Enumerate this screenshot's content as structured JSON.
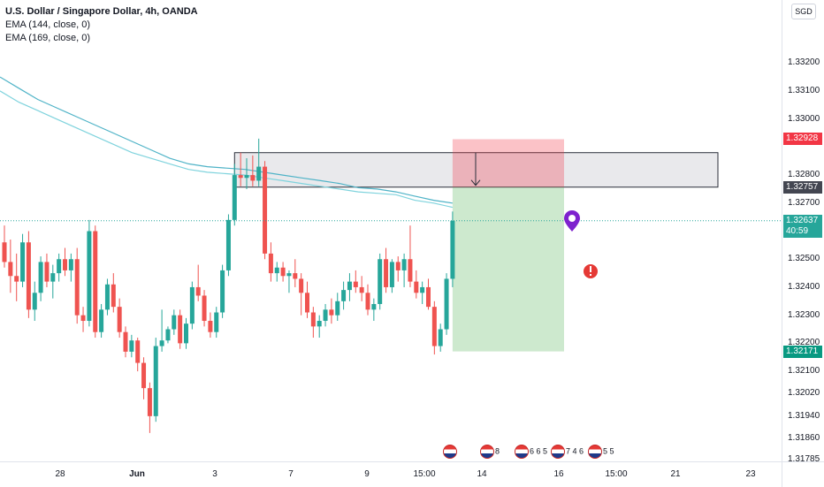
{
  "legend": {
    "title": "U.S. Dollar / Singapore Dollar, 4h, OANDA",
    "ema1": "EMA (144, close, 0)",
    "ema2": "EMA (169, close, 0)"
  },
  "price_axis": {
    "currency": "SGD",
    "ticks": [
      "1.33200",
      "1.33100",
      "1.33000",
      "1.32800",
      "1.32700",
      "1.32500",
      "1.32400",
      "1.32300",
      "1.32200",
      "1.32100",
      "1.32020",
      "1.31940",
      "1.31860",
      "1.31785"
    ],
    "tags": {
      "stop": {
        "value": "1.32928",
        "color": "#f23645"
      },
      "entry": {
        "value": "1.32757",
        "color": "#434651"
      },
      "current": {
        "value": "1.32637",
        "countdown": "40:59",
        "color": "#26a69a"
      },
      "target": {
        "value": "1.32171",
        "color": "#089981"
      }
    }
  },
  "time_axis": {
    "ticks": [
      "28",
      "Jun",
      "3",
      "7",
      "9",
      "15:00",
      "14",
      "16",
      "15:00",
      "21",
      "23"
    ]
  },
  "events": [
    {
      "count": "8"
    },
    {
      "count": "6 6 5"
    },
    {
      "count": "7 4 6"
    },
    {
      "count": "5 5"
    }
  ],
  "colors": {
    "up": "#26a69a",
    "down": "#ef5350",
    "ema1": "#7fd3dd",
    "ema2": "#4fb3c7"
  },
  "chart_data": {
    "type": "candlestick",
    "symbol": "USDSGD",
    "interval": "4h",
    "ylim": [
      1.31785,
      1.3333
    ],
    "current_price": 1.32637,
    "position": {
      "direction": "short",
      "entry": 1.32757,
      "stop": 1.32928,
      "target": 1.32171
    },
    "resistance_zone": [
      1.32757,
      1.3288
    ],
    "candles": [
      [
        1.3256,
        1.3262,
        1.3247,
        1.3249
      ],
      [
        1.3249,
        1.3257,
        1.3238,
        1.3244
      ],
      [
        1.3244,
        1.3252,
        1.3235,
        1.3242
      ],
      [
        1.3242,
        1.3259,
        1.324,
        1.3256
      ],
      [
        1.3256,
        1.326,
        1.3229,
        1.3232
      ],
      [
        1.3232,
        1.3242,
        1.3228,
        1.3238
      ],
      [
        1.3238,
        1.3251,
        1.3235,
        1.3249
      ],
      [
        1.3249,
        1.3252,
        1.324,
        1.3242
      ],
      [
        1.3242,
        1.3248,
        1.3236,
        1.3245
      ],
      [
        1.3245,
        1.3252,
        1.3242,
        1.325
      ],
      [
        1.325,
        1.3254,
        1.3244,
        1.3246
      ],
      [
        1.3246,
        1.3252,
        1.3242,
        1.325
      ],
      [
        1.325,
        1.3254,
        1.3227,
        1.323
      ],
      [
        1.323,
        1.3233,
        1.3224,
        1.3228
      ],
      [
        1.3228,
        1.3264,
        1.3226,
        1.326
      ],
      [
        1.326,
        1.3262,
        1.3222,
        1.3224
      ],
      [
        1.3224,
        1.3234,
        1.3222,
        1.3232
      ],
      [
        1.3232,
        1.3243,
        1.323,
        1.3241
      ],
      [
        1.3241,
        1.3245,
        1.3231,
        1.3233
      ],
      [
        1.3233,
        1.3236,
        1.3222,
        1.3224
      ],
      [
        1.3224,
        1.3226,
        1.3215,
        1.3217
      ],
      [
        1.3217,
        1.3223,
        1.3215,
        1.3221
      ],
      [
        1.3221,
        1.3222,
        1.321,
        1.3213
      ],
      [
        1.3213,
        1.3215,
        1.32,
        1.3204
      ],
      [
        1.3204,
        1.3206,
        1.3188,
        1.3194
      ],
      [
        1.3194,
        1.3222,
        1.3192,
        1.3219
      ],
      [
        1.3219,
        1.3232,
        1.3217,
        1.3221
      ],
      [
        1.3221,
        1.3226,
        1.322,
        1.3225
      ],
      [
        1.3225,
        1.3232,
        1.3223,
        1.323
      ],
      [
        1.323,
        1.3232,
        1.3218,
        1.322
      ],
      [
        1.322,
        1.3229,
        1.3218,
        1.3227
      ],
      [
        1.3227,
        1.3242,
        1.3225,
        1.324
      ],
      [
        1.324,
        1.3248,
        1.3235,
        1.3237
      ],
      [
        1.3237,
        1.3239,
        1.3226,
        1.3228
      ],
      [
        1.3228,
        1.3231,
        1.3222,
        1.3224
      ],
      [
        1.3224,
        1.3233,
        1.3222,
        1.3231
      ],
      [
        1.3231,
        1.3248,
        1.3229,
        1.3246
      ],
      [
        1.3246,
        1.3266,
        1.3244,
        1.3264
      ],
      [
        1.3264,
        1.3284,
        1.3262,
        1.328
      ],
      [
        1.328,
        1.3288,
        1.3276,
        1.3279
      ],
      [
        1.3279,
        1.3286,
        1.3275,
        1.328
      ],
      [
        1.328,
        1.3287,
        1.3276,
        1.3278
      ],
      [
        1.3278,
        1.3293,
        1.3276,
        1.3283
      ],
      [
        1.3283,
        1.3285,
        1.325,
        1.3252
      ],
      [
        1.3252,
        1.3256,
        1.3242,
        1.3245
      ],
      [
        1.3245,
        1.3249,
        1.3242,
        1.3247
      ],
      [
        1.3247,
        1.3249,
        1.3242,
        1.3244
      ],
      [
        1.3244,
        1.3246,
        1.3238,
        1.3245
      ],
      [
        1.3245,
        1.325,
        1.324,
        1.3243
      ],
      [
        1.3243,
        1.3245,
        1.323,
        1.3238
      ],
      [
        1.3238,
        1.3242,
        1.3229,
        1.3231
      ],
      [
        1.3231,
        1.3233,
        1.3222,
        1.3226
      ],
      [
        1.3226,
        1.323,
        1.3222,
        1.3228
      ],
      [
        1.3228,
        1.3234,
        1.3226,
        1.3232
      ],
      [
        1.3232,
        1.3236,
        1.3227,
        1.323
      ],
      [
        1.323,
        1.3238,
        1.3228,
        1.3235
      ],
      [
        1.3235,
        1.3242,
        1.3232,
        1.3239
      ],
      [
        1.3239,
        1.3245,
        1.3235,
        1.3242
      ],
      [
        1.3242,
        1.3246,
        1.3238,
        1.324
      ],
      [
        1.324,
        1.3244,
        1.3235,
        1.3238
      ],
      [
        1.3238,
        1.3241,
        1.323,
        1.3232
      ],
      [
        1.3232,
        1.3236,
        1.3228,
        1.3234
      ],
      [
        1.3234,
        1.3252,
        1.3232,
        1.325
      ],
      [
        1.325,
        1.3254,
        1.3238,
        1.324
      ],
      [
        1.324,
        1.325,
        1.3238,
        1.3249
      ],
      [
        1.3249,
        1.3251,
        1.3242,
        1.3246
      ],
      [
        1.3246,
        1.3252,
        1.324,
        1.325
      ],
      [
        1.325,
        1.3262,
        1.324,
        1.3242
      ],
      [
        1.3242,
        1.3246,
        1.3236,
        1.3238
      ],
      [
        1.3238,
        1.3242,
        1.3234,
        1.324
      ],
      [
        1.324,
        1.3243,
        1.3232,
        1.3233
      ],
      [
        1.3233,
        1.3235,
        1.3216,
        1.3219
      ],
      [
        1.3219,
        1.3227,
        1.3217,
        1.3225
      ],
      [
        1.3225,
        1.3245,
        1.3223,
        1.3243
      ],
      [
        1.3243,
        1.3267,
        1.324,
        1.32637
      ]
    ],
    "ema144": [
      1.331,
      1.3306,
      1.3303,
      1.33,
      1.3297,
      1.3294,
      1.3291,
      1.3288,
      1.3286,
      1.3284,
      1.3282,
      1.3281,
      1.32805,
      1.328,
      1.3279,
      1.3278,
      1.3277,
      1.3276,
      1.3275,
      1.3274,
      1.32735,
      1.3273,
      1.3271,
      1.327,
      1.32685
    ],
    "ema169": [
      1.3315,
      1.3311,
      1.3307,
      1.3304,
      1.3301,
      1.3298,
      1.3295,
      1.3292,
      1.3289,
      1.3286,
      1.3284,
      1.3283,
      1.32825,
      1.3282,
      1.3281,
      1.328,
      1.3279,
      1.3278,
      1.3277,
      1.32755,
      1.3275,
      1.3274,
      1.32725,
      1.3271,
      1.327
    ]
  }
}
